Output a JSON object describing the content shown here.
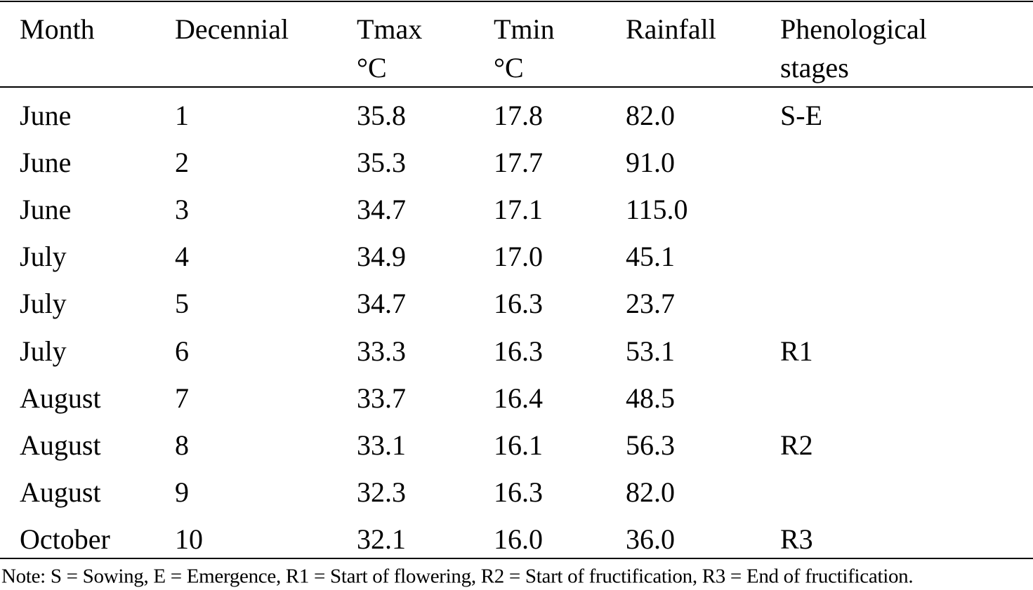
{
  "table": {
    "headers": [
      [
        "Month"
      ],
      [
        "Decennial"
      ],
      [
        "Tmax",
        "°C"
      ],
      [
        "Tmin",
        "°C"
      ],
      [
        "Rainfall"
      ],
      [
        "Phenological",
        "stages"
      ]
    ],
    "rows": [
      [
        "June",
        "1",
        "35.8",
        "17.8",
        "82.0",
        "S-E"
      ],
      [
        "June",
        "2",
        "35.3",
        "17.7",
        "91.0",
        null
      ],
      [
        "June",
        "3",
        "34.7",
        "17.1",
        "115.0",
        null
      ],
      [
        "July",
        "4",
        "34.9",
        "17.0",
        "45.1",
        null
      ],
      [
        "July",
        "5",
        "34.7",
        "16.3",
        "23.7",
        null
      ],
      [
        "July",
        "6",
        "33.3",
        "16.3",
        "53.1",
        "R1"
      ],
      [
        "August",
        "7",
        "33.7",
        "16.4",
        "48.5",
        null
      ],
      [
        "August",
        "8",
        "33.1",
        "16.1",
        "56.3",
        "R2"
      ],
      [
        "August",
        "9",
        "32.3",
        "16.3",
        "82.0",
        null
      ],
      [
        "October",
        "10",
        "32.1",
        "16.0",
        "36.0",
        "R3"
      ]
    ],
    "note": "Note: S = Sowing, E = Emergence, R1 = Start of flowering, R2 = Start of fructification, R3 = End of fructification."
  }
}
